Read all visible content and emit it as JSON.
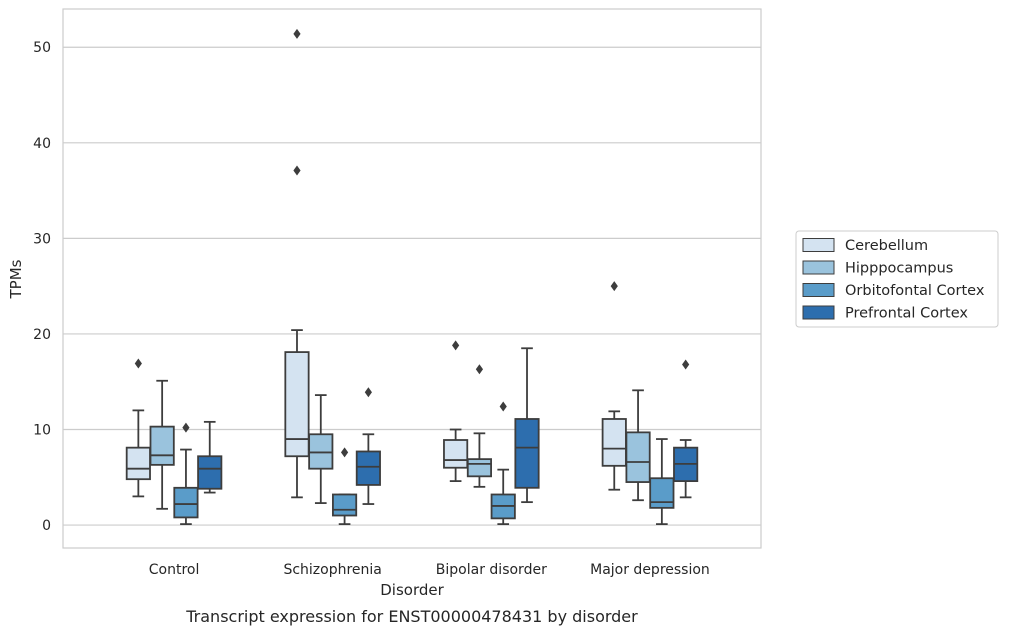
{
  "caption": "Transcript expression for ENST00000478431 by disorder",
  "chart_data": {
    "type": "box",
    "xlabel": "Disorder",
    "ylabel": "TPMs",
    "categories": [
      "Control",
      "Schizophrenia",
      "Bipolar disorder",
      "Major depression"
    ],
    "ylim": [
      -2.4,
      54
    ],
    "yticks": [
      0,
      10,
      20,
      30,
      40,
      50
    ],
    "grid": "horizontal",
    "legend_position": "right",
    "series": [
      {
        "name": "Cerebellum",
        "color": "#d4e3f1",
        "boxes": [
          {
            "whislo": 3.0,
            "q1": 4.8,
            "med": 5.9,
            "q3": 8.1,
            "whishi": 12.0,
            "fliers": [
              16.9
            ]
          },
          {
            "whislo": 2.9,
            "q1": 7.2,
            "med": 9.0,
            "q3": 18.1,
            "whishi": 20.4,
            "fliers": [
              37.1,
              51.4
            ]
          },
          {
            "whislo": 4.6,
            "q1": 6.0,
            "med": 6.8,
            "q3": 8.9,
            "whishi": 10.0,
            "fliers": [
              18.8
            ]
          },
          {
            "whislo": 3.7,
            "q1": 6.2,
            "med": 8.0,
            "q3": 11.1,
            "whishi": 11.9,
            "fliers": [
              25.0
            ]
          }
        ]
      },
      {
        "name": "Hipppocampus",
        "color": "#9ac3dd",
        "boxes": [
          {
            "whislo": 1.7,
            "q1": 6.3,
            "med": 7.3,
            "q3": 10.3,
            "whishi": 15.1,
            "fliers": []
          },
          {
            "whislo": 2.3,
            "q1": 5.9,
            "med": 7.6,
            "q3": 9.5,
            "whishi": 13.6,
            "fliers": []
          },
          {
            "whislo": 4.0,
            "q1": 5.1,
            "med": 6.4,
            "q3": 6.9,
            "whishi": 9.6,
            "fliers": [
              16.3
            ]
          },
          {
            "whislo": 2.6,
            "q1": 4.5,
            "med": 6.6,
            "q3": 9.7,
            "whishi": 14.1,
            "fliers": []
          }
        ]
      },
      {
        "name": "Orbitofontal Cortex",
        "color": "#5a9cc9",
        "boxes": [
          {
            "whislo": 0.1,
            "q1": 0.8,
            "med": 2.2,
            "q3": 3.9,
            "whishi": 7.9,
            "fliers": [
              10.2
            ]
          },
          {
            "whislo": 0.1,
            "q1": 1.0,
            "med": 1.6,
            "q3": 3.2,
            "whishi": 3.2,
            "fliers": [
              7.6
            ]
          },
          {
            "whislo": 0.1,
            "q1": 0.7,
            "med": 2.0,
            "q3": 3.2,
            "whishi": 5.8,
            "fliers": [
              12.4
            ]
          },
          {
            "whislo": 0.1,
            "q1": 1.8,
            "med": 2.4,
            "q3": 4.9,
            "whishi": 9.0,
            "fliers": []
          }
        ]
      },
      {
        "name": "Prefrontal Cortex",
        "color": "#2d6eae",
        "boxes": [
          {
            "whislo": 3.4,
            "q1": 3.8,
            "med": 5.9,
            "q3": 7.2,
            "whishi": 10.8,
            "fliers": []
          },
          {
            "whislo": 2.2,
            "q1": 4.2,
            "med": 6.1,
            "q3": 7.7,
            "whishi": 9.5,
            "fliers": [
              13.9
            ]
          },
          {
            "whislo": 2.4,
            "q1": 3.9,
            "med": 8.1,
            "q3": 11.1,
            "whishi": 18.5,
            "fliers": []
          },
          {
            "whislo": 2.9,
            "q1": 4.6,
            "med": 6.4,
            "q3": 8.1,
            "whishi": 8.9,
            "fliers": [
              16.8
            ]
          }
        ]
      }
    ]
  }
}
